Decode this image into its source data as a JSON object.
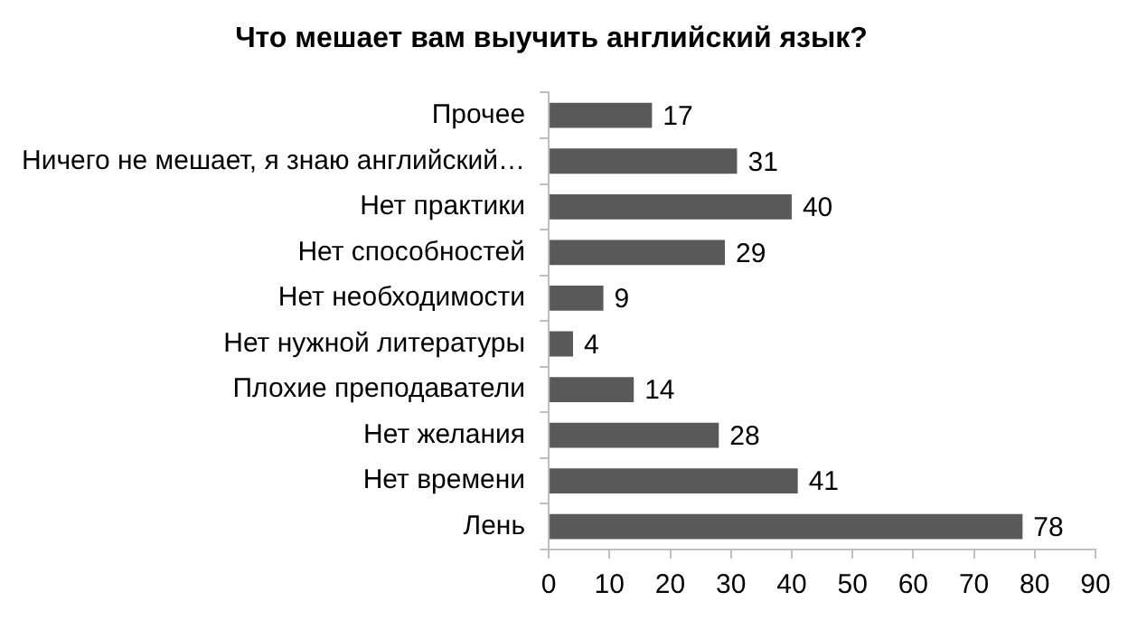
{
  "chart_data": {
    "type": "bar",
    "orientation": "horizontal",
    "title": "Что мешает вам выучить английский язык?",
    "categories": [
      "Прочее",
      "Ничего не мешает, я знаю английский…",
      "Нет практики",
      "Нет способностей",
      "Нет необходимости",
      "Нет нужной литературы",
      "Плохие преподаватели",
      "Нет желания",
      "Нет времени",
      "Лень"
    ],
    "values": [
      17,
      31,
      40,
      29,
      9,
      4,
      14,
      28,
      41,
      78
    ],
    "color": "#595959",
    "xlim": [
      0,
      90
    ],
    "xticks": [
      0,
      10,
      20,
      30,
      40,
      50,
      60,
      70,
      80,
      90
    ],
    "grid": false,
    "legend": false,
    "data_labels": true
  }
}
